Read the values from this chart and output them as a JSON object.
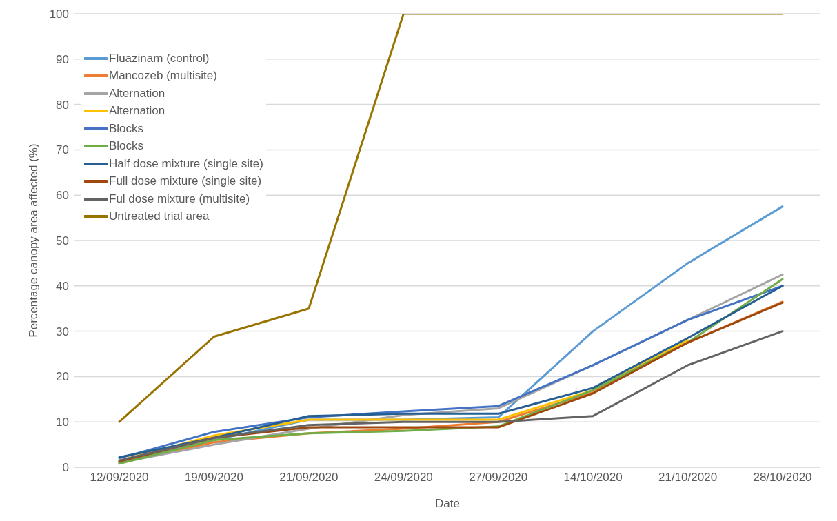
{
  "chart_data": {
    "type": "line",
    "xlabel": "Date",
    "ylabel": "Percentage canopy area affected (%)",
    "categories": [
      "12/09/2020",
      "19/09/2020",
      "21/09/2020",
      "24/09/2020",
      "27/09/2020",
      "14/10/2020",
      "21/10/2020",
      "28/10/2020"
    ],
    "series": [
      {
        "name": "Fluazinam (control)",
        "color": "#5b9bd5",
        "values": [
          1,
          6,
          10.5,
          10.5,
          11,
          30,
          45,
          57.5
        ]
      },
      {
        "name": "Mancozeb (multisite)",
        "color": "#ed7d31",
        "values": [
          1,
          5.5,
          7.5,
          8.5,
          10,
          16.5,
          27.5,
          36.5
        ]
      },
      {
        "name": "Alternation",
        "color": "#a5a5a5",
        "values": [
          1,
          5,
          8.5,
          11.5,
          13,
          22.5,
          32.5,
          42.5
        ]
      },
      {
        "name": "Alternation",
        "color": "#ffc000",
        "values": [
          1.5,
          7,
          10.5,
          10.5,
          10.5,
          17,
          28,
          null
        ]
      },
      {
        "name": "Blocks",
        "color": "#4472c4",
        "values": [
          2,
          7.8,
          11,
          12.3,
          13.5,
          22.5,
          32.5,
          40
        ]
      },
      {
        "name": "Blocks",
        "color": "#70ad47",
        "values": [
          0.8,
          6,
          7.5,
          8,
          9,
          17,
          27.5,
          41.5
        ]
      },
      {
        "name": "Half dose mixture (single site)",
        "color": "#255e91",
        "values": [
          2.2,
          6.5,
          11.3,
          11.8,
          11.8,
          17.5,
          28.5,
          40
        ]
      },
      {
        "name": "Full dose mixture (single site)",
        "color": "#9e480e",
        "values": [
          1.3,
          6.5,
          8.8,
          8.8,
          8.8,
          16.3,
          27.5,
          36.3
        ]
      },
      {
        "name": "Ful dose mixture (multisite)",
        "color": "#636363",
        "values": [
          1.5,
          6.5,
          9.3,
          10,
          10,
          11.3,
          22.5,
          30
        ]
      },
      {
        "name": "Untreated trial area",
        "color": "#997300",
        "values": [
          10,
          28.8,
          35,
          100,
          100,
          100,
          100,
          100
        ]
      }
    ],
    "ylim": [
      0,
      100
    ],
    "yticks": [
      0,
      10,
      20,
      30,
      40,
      50,
      60,
      70,
      80,
      90,
      100
    ],
    "grid": "y",
    "legend": "top left",
    "marker": "none",
    "line_style": "solid"
  }
}
